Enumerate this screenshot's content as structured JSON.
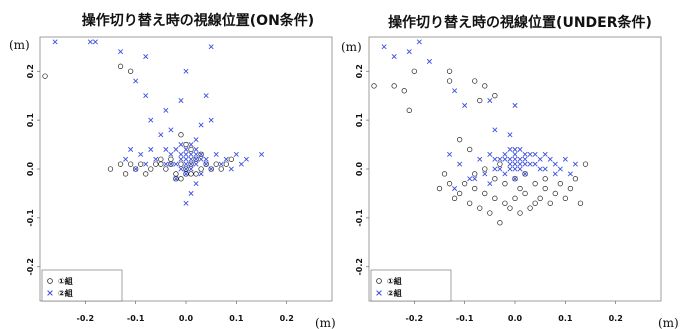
{
  "chart_data": [
    {
      "type": "scatter",
      "title": "操作切り替え時の視線位置(ON条件)",
      "xlabel": "(m)",
      "ylabel": "(m)",
      "xlim": [
        -0.29,
        0.29
      ],
      "ylim": [
        -0.27,
        0.27
      ],
      "xticks": [
        "-0.2",
        "-0.1",
        "0.0",
        "0.1",
        "0.2"
      ],
      "xtick_values": [
        -0.2,
        -0.1,
        0.0,
        0.1,
        0.2
      ],
      "yticks": [
        "-0.2",
        "-0.1",
        "0.0",
        "0.1",
        "0.2"
      ],
      "ytick_values": [
        -0.2,
        -0.1,
        0.0,
        0.1,
        0.2
      ],
      "legend": {
        "position": "bottom-left",
        "entries": [
          "①組",
          "②組"
        ]
      },
      "series": [
        {
          "name": "①組",
          "marker": "circle",
          "color": "#222222",
          "points": [
            [
              -0.13,
              0.21
            ],
            [
              -0.11,
              0.2
            ],
            [
              -0.28,
              0.19
            ],
            [
              -0.15,
              0.0
            ],
            [
              -0.13,
              0.01
            ],
            [
              -0.12,
              -0.01
            ],
            [
              -0.11,
              0.01
            ],
            [
              -0.1,
              0.0
            ],
            [
              -0.09,
              0.01
            ],
            [
              -0.08,
              -0.01
            ],
            [
              -0.07,
              0.0
            ],
            [
              -0.06,
              0.01
            ],
            [
              -0.05,
              0.01
            ],
            [
              -0.04,
              0.0
            ],
            [
              -0.03,
              0.01
            ],
            [
              -0.02,
              -0.01
            ],
            [
              -0.01,
              0.01
            ],
            [
              0.0,
              0.0
            ],
            [
              0.01,
              0.01
            ],
            [
              0.02,
              -0.01
            ],
            [
              0.03,
              0.0
            ],
            [
              0.04,
              0.01
            ],
            [
              0.05,
              0.0
            ],
            [
              0.06,
              0.01
            ],
            [
              0.07,
              0.0
            ],
            [
              0.08,
              0.01
            ],
            [
              0.09,
              0.02
            ],
            [
              -0.01,
              0.07
            ],
            [
              0.0,
              0.05
            ],
            [
              0.01,
              0.04
            ],
            [
              -0.02,
              -0.02
            ],
            [
              -0.01,
              -0.02
            ],
            [
              0.0,
              -0.01
            ],
            [
              0.01,
              -0.01
            ],
            [
              0.02,
              0.02
            ],
            [
              -0.03,
              0.02
            ],
            [
              0.03,
              0.03
            ],
            [
              -0.05,
              0.02
            ]
          ]
        },
        {
          "name": "②組",
          "marker": "x",
          "color": "#3a4fe0",
          "points": [
            [
              -0.26,
              0.26
            ],
            [
              -0.19,
              0.26
            ],
            [
              -0.18,
              0.26
            ],
            [
              -0.13,
              0.24
            ],
            [
              0.05,
              0.25
            ],
            [
              -0.08,
              0.23
            ],
            [
              0.0,
              0.2
            ],
            [
              -0.1,
              0.18
            ],
            [
              -0.08,
              0.15
            ],
            [
              0.04,
              0.15
            ],
            [
              -0.01,
              0.14
            ],
            [
              -0.04,
              0.12
            ],
            [
              -0.07,
              0.1
            ],
            [
              0.05,
              0.1
            ],
            [
              -0.03,
              0.08
            ],
            [
              0.03,
              0.09
            ],
            [
              -0.05,
              0.07
            ],
            [
              0.02,
              0.06
            ],
            [
              -0.11,
              0.04
            ],
            [
              -0.09,
              0.03
            ],
            [
              -0.07,
              0.04
            ],
            [
              -0.06,
              0.02
            ],
            [
              -0.04,
              0.04
            ],
            [
              -0.03,
              0.03
            ],
            [
              -0.02,
              0.04
            ],
            [
              -0.01,
              0.05
            ],
            [
              0.0,
              0.04
            ],
            [
              0.01,
              0.05
            ],
            [
              0.02,
              0.04
            ],
            [
              0.03,
              0.03
            ],
            [
              0.04,
              0.02
            ],
            [
              0.06,
              0.03
            ],
            [
              0.08,
              0.02
            ],
            [
              0.1,
              0.03
            ],
            [
              0.12,
              0.02
            ],
            [
              0.15,
              0.03
            ],
            [
              -0.12,
              0.02
            ],
            [
              -0.1,
              0.0
            ],
            [
              -0.08,
              0.01
            ],
            [
              0.05,
              0.0
            ],
            [
              0.07,
              0.01
            ],
            [
              0.09,
              0.0
            ],
            [
              0.11,
              0.01
            ],
            [
              0.02,
              -0.03
            ],
            [
              0.01,
              -0.05
            ],
            [
              0.0,
              -0.07
            ],
            [
              -0.02,
              -0.02
            ],
            [
              0.03,
              -0.01
            ],
            [
              -0.01,
              0.02
            ],
            [
              0.0,
              0.01
            ],
            [
              0.01,
              0.02
            ],
            [
              0.02,
              0.01
            ],
            [
              -0.02,
              0.01
            ],
            [
              0.0,
              0.03
            ],
            [
              0.01,
              0.0
            ],
            [
              -0.01,
              0.0
            ],
            [
              0.02,
              0.02
            ],
            [
              -0.03,
              0.01
            ],
            [
              0.03,
              0.02
            ],
            [
              0.0,
              0.02
            ],
            [
              0.01,
              0.03
            ],
            [
              -0.01,
              0.03
            ],
            [
              0.02,
              0.03
            ],
            [
              0.04,
              0.01
            ],
            [
              -0.04,
              0.01
            ],
            [
              0.0,
              -0.01
            ],
            [
              0.01,
              0.01
            ],
            [
              0.0,
              0.0
            ]
          ]
        }
      ]
    },
    {
      "type": "scatter",
      "title": "操作切り替え時の視線位置(UNDER条件)",
      "xlabel": "(m)",
      "ylabel": "(m)",
      "xlim": [
        -0.29,
        0.29
      ],
      "ylim": [
        -0.27,
        0.27
      ],
      "xticks": [
        "-0.2",
        "-0.1",
        "0.0",
        "0.1",
        "0.2"
      ],
      "xtick_values": [
        -0.2,
        -0.1,
        0.0,
        0.1,
        0.2
      ],
      "yticks": [
        "-0.2",
        "-0.1",
        "0.0",
        "0.1",
        "0.2"
      ],
      "ytick_values": [
        -0.2,
        -0.1,
        0.0,
        0.1,
        0.2
      ],
      "legend": {
        "position": "bottom-left",
        "entries": [
          "①組",
          "②組"
        ]
      },
      "series": [
        {
          "name": "①組",
          "marker": "circle",
          "color": "#222222",
          "points": [
            [
              -0.28,
              0.17
            ],
            [
              -0.24,
              0.17
            ],
            [
              -0.22,
              0.16
            ],
            [
              -0.2,
              0.2
            ],
            [
              -0.21,
              0.12
            ],
            [
              -0.13,
              0.2
            ],
            [
              -0.13,
              0.18
            ],
            [
              -0.08,
              0.18
            ],
            [
              -0.06,
              0.17
            ],
            [
              -0.07,
              0.14
            ],
            [
              -0.04,
              0.15
            ],
            [
              -0.11,
              0.06
            ],
            [
              -0.09,
              0.04
            ],
            [
              -0.15,
              -0.04
            ],
            [
              -0.14,
              -0.01
            ],
            [
              -0.13,
              -0.03
            ],
            [
              -0.12,
              -0.06
            ],
            [
              -0.11,
              -0.05
            ],
            [
              -0.1,
              -0.03
            ],
            [
              -0.09,
              -0.07
            ],
            [
              -0.08,
              -0.04
            ],
            [
              -0.07,
              -0.08
            ],
            [
              -0.06,
              -0.05
            ],
            [
              -0.05,
              -0.09
            ],
            [
              -0.04,
              -0.06
            ],
            [
              -0.03,
              -0.11
            ],
            [
              -0.02,
              -0.07
            ],
            [
              -0.01,
              -0.08
            ],
            [
              0.0,
              -0.06
            ],
            [
              0.01,
              -0.09
            ],
            [
              0.02,
              -0.05
            ],
            [
              0.03,
              -0.08
            ],
            [
              0.04,
              -0.07
            ],
            [
              0.05,
              -0.06
            ],
            [
              0.06,
              -0.04
            ],
            [
              0.07,
              -0.07
            ],
            [
              0.08,
              -0.05
            ],
            [
              0.09,
              -0.03
            ],
            [
              0.1,
              -0.06
            ],
            [
              0.11,
              -0.04
            ],
            [
              0.12,
              -0.02
            ],
            [
              0.13,
              -0.07
            ],
            [
              0.14,
              0.01
            ],
            [
              -0.06,
              0.0
            ],
            [
              -0.04,
              -0.02
            ],
            [
              -0.02,
              -0.03
            ],
            [
              0.0,
              -0.02
            ],
            [
              0.02,
              -0.01
            ],
            [
              0.04,
              -0.03
            ],
            [
              -0.03,
              0.01
            ],
            [
              0.01,
              -0.04
            ],
            [
              -0.08,
              -0.01
            ],
            [
              0.06,
              -0.02
            ]
          ]
        },
        {
          "name": "②組",
          "marker": "x",
          "color": "#3a4fe0",
          "points": [
            [
              -0.26,
              0.25
            ],
            [
              -0.24,
              0.23
            ],
            [
              -0.21,
              0.24
            ],
            [
              -0.19,
              0.26
            ],
            [
              -0.17,
              0.22
            ],
            [
              -0.12,
              0.16
            ],
            [
              -0.05,
              0.14
            ],
            [
              -0.1,
              0.13
            ],
            [
              0.0,
              0.13
            ],
            [
              -0.04,
              0.08
            ],
            [
              -0.01,
              0.07
            ],
            [
              -0.13,
              0.03
            ],
            [
              -0.11,
              0.01
            ],
            [
              -0.09,
              -0.02
            ],
            [
              -0.12,
              -0.04
            ],
            [
              -0.07,
              0.02
            ],
            [
              -0.06,
              -0.01
            ],
            [
              -0.05,
              0.03
            ],
            [
              -0.04,
              0.0
            ],
            [
              -0.03,
              0.02
            ],
            [
              -0.02,
              0.03
            ],
            [
              -0.01,
              0.04
            ],
            [
              0.0,
              0.03
            ],
            [
              0.01,
              0.04
            ],
            [
              0.02,
              0.02
            ],
            [
              0.03,
              0.03
            ],
            [
              0.04,
              0.01
            ],
            [
              0.05,
              0.02
            ],
            [
              0.06,
              0.0
            ],
            [
              0.07,
              0.02
            ],
            [
              0.08,
              0.01
            ],
            [
              0.09,
              0.0
            ],
            [
              0.1,
              0.02
            ],
            [
              0.11,
              -0.01
            ],
            [
              0.12,
              0.01
            ],
            [
              -0.02,
              -0.01
            ],
            [
              0.0,
              -0.02
            ],
            [
              0.02,
              -0.01
            ],
            [
              -0.01,
              0.0
            ],
            [
              0.01,
              0.0
            ],
            [
              0.0,
              0.01
            ],
            [
              -0.01,
              0.02
            ],
            [
              0.01,
              0.02
            ],
            [
              0.02,
              0.01
            ],
            [
              0.0,
              0.02
            ],
            [
              -0.02,
              0.02
            ],
            [
              0.03,
              0.01
            ],
            [
              -0.03,
              0.0
            ],
            [
              0.01,
              0.01
            ],
            [
              0.0,
              0.0
            ],
            [
              0.02,
              0.03
            ],
            [
              -0.01,
              0.01
            ],
            [
              0.04,
              0.03
            ],
            [
              -0.04,
              0.02
            ],
            [
              0.05,
              0.0
            ],
            [
              -0.05,
              -0.03
            ],
            [
              0.06,
              0.03
            ],
            [
              -0.08,
              -0.02
            ],
            [
              0.08,
              -0.01
            ],
            [
              0.0,
              0.04
            ]
          ]
        }
      ]
    }
  ]
}
